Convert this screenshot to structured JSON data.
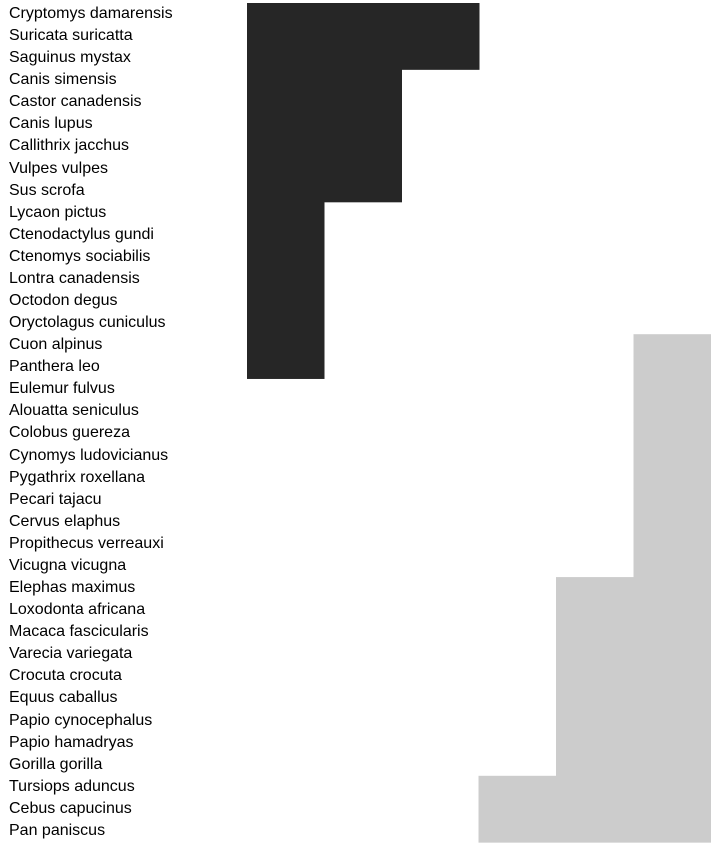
{
  "colors": {
    "dark": "#262626",
    "light": "#cccccc",
    "background": "#ffffff"
  },
  "chart_data": {
    "type": "bar",
    "orientation": "horizontal",
    "title": "",
    "xlabel": "",
    "ylabel": "",
    "grid": false,
    "legend": "none",
    "xlim": [
      0,
      6
    ],
    "categories": [
      "Cryptomys damarensis",
      "Suricata suricatta",
      "Saguinus mystax",
      "Canis simensis",
      "Castor canadensis",
      "Canis lupus",
      "Callithrix jacchus",
      "Vulpes vulpes",
      "Sus scrofa",
      "Lycaon pictus",
      "Ctenodactylus gundi",
      "Ctenomys sociabilis",
      "Lontra canadensis",
      "Octodon degus",
      "Oryctolagus cuniculus",
      "Cuon alpinus",
      "Panthera leo",
      "Eulemur fulvus",
      "Alouatta seniculus",
      "Colobus guereza",
      "Cynomys ludovicianus",
      "Pygathrix roxellana",
      "Pecari tajacu",
      "Cervus elaphus",
      "Propithecus verreauxi",
      "Vicugna vicugna",
      "Elephas maximus",
      "Loxodonta africana",
      "Macaca fascicularis",
      "Varecia variegata",
      "Crocuta crocuta",
      "Equus caballus",
      "Papio cynocephalus",
      "Papio hamadryas",
      "Gorilla gorilla",
      "Tursiops aduncus",
      "Cebus capucinus",
      "Pan paniscus"
    ],
    "series": [
      {
        "color": "#262626",
        "direction": "from-left",
        "values": [
          3,
          3,
          3,
          2,
          2,
          2,
          2,
          2,
          2,
          1,
          1,
          1,
          1,
          1,
          1,
          1,
          1,
          0,
          0,
          0,
          0,
          0,
          0,
          0,
          0,
          0,
          0,
          0,
          0,
          0,
          0,
          0,
          0,
          0,
          0,
          0,
          0,
          0
        ]
      },
      {
        "color": "#cccccc",
        "direction": "from-right",
        "values": [
          0,
          0,
          0,
          0,
          0,
          0,
          0,
          0,
          0,
          0,
          0,
          0,
          0,
          0,
          0,
          1,
          1,
          1,
          1,
          1,
          1,
          1,
          1,
          1,
          1,
          1,
          2,
          2,
          2,
          2,
          2,
          2,
          2,
          2,
          2,
          3,
          3,
          3
        ]
      }
    ]
  }
}
